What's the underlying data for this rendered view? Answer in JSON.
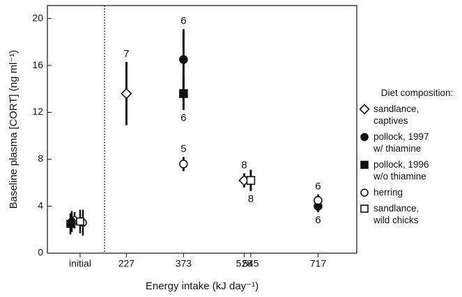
{
  "chart_data": {
    "type": "scatter",
    "ylabel": "Baseline plasma [CORT] (ng ml⁻¹)",
    "xlabel": "Energy intake (kJ day⁻¹)",
    "legend_title": "Diet composition:",
    "initial_label": "initial",
    "ylim": [
      0,
      21.1
    ],
    "yticks": [
      0,
      4,
      8,
      12,
      16,
      20
    ],
    "xlim": [
      171,
      816
    ],
    "xticks": [
      227,
      373,
      528,
      545,
      717
    ],
    "series": [
      {
        "name": "sandlance, captives",
        "marker": "diamond-open",
        "x": [
          227,
          528
        ],
        "values": [
          13.6,
          6.2
        ],
        "errors": [
          2.7,
          0.6
        ],
        "n": [
          7,
          8
        ],
        "n_pos": [
          "above",
          "above"
        ],
        "initial_value": 2.8,
        "initial_error": 0.7
      },
      {
        "name": "pollock, 1997 w/ thiamine",
        "marker": "circle-filled",
        "x": [
          373,
          717
        ],
        "values": [
          16.5,
          4.0
        ],
        "errors": [
          2.6,
          0.5
        ],
        "n": [
          6,
          6
        ],
        "n_pos": [
          "above",
          "below"
        ],
        "initial_value": 2.7,
        "initial_error": 0.9
      },
      {
        "name": "pollock, 1996 w/o thiamine",
        "marker": "square-filled",
        "x": [
          373
        ],
        "values": [
          13.6
        ],
        "errors": [
          1.4
        ],
        "n": [
          6
        ],
        "n_pos": [
          "below"
        ],
        "initial_value": 2.5,
        "initial_error": 0.9
      },
      {
        "name": "herring",
        "marker": "circle-open",
        "x": [
          373,
          717
        ],
        "values": [
          7.6,
          4.5
        ],
        "errors": [
          0.6,
          0.5
        ],
        "n": [
          5,
          6
        ],
        "n_pos": [
          "above",
          "above"
        ],
        "initial_value": 2.6,
        "initial_error": 1.1
      },
      {
        "name": "sandlance, wild chicks",
        "marker": "square-open",
        "x": [
          545
        ],
        "values": [
          6.2
        ],
        "errors": [
          0.9
        ],
        "n": [
          8
        ],
        "n_pos": [
          "below"
        ],
        "initial_value": 2.7,
        "initial_error": 1.0
      }
    ]
  }
}
